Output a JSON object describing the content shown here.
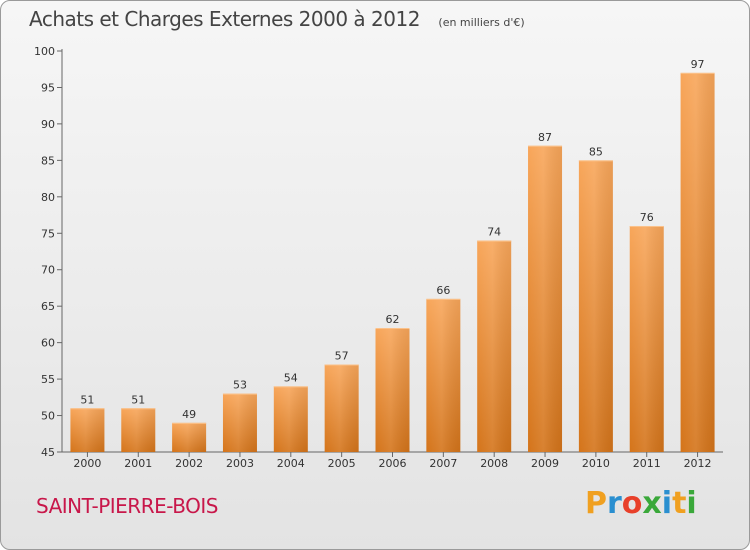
{
  "header": {
    "title": "Achats et Charges Externes 2000 à 2012",
    "unit": "(en milliers d'€)"
  },
  "footer": {
    "commune": "SAINT-PIERRE-BOIS",
    "logo": "Proxiti",
    "logo_colors": [
      "#f0a020",
      "#2a8fd0",
      "#e8402a",
      "#3aa83a",
      "#2a8fd0",
      "#f0a020",
      "#3aa83a"
    ]
  },
  "colors": {
    "bar_top": "#f8a65a",
    "bar_bottom": "#d4741a",
    "axis": "#666666",
    "grid": "#cccccc",
    "text": "#333333"
  },
  "chart_data": {
    "type": "bar",
    "title": "Achats et Charges Externes 2000 à 2012",
    "subtitle": "(en milliers d'€)",
    "xlabel": "",
    "ylabel": "",
    "categories": [
      "2000",
      "2001",
      "2002",
      "2003",
      "2004",
      "2005",
      "2006",
      "2007",
      "2008",
      "2009",
      "2010",
      "2011",
      "2012"
    ],
    "values": [
      51,
      51,
      49,
      53,
      54,
      57,
      62,
      66,
      74,
      87,
      85,
      76,
      97
    ],
    "ylim": [
      45,
      100
    ],
    "yticks": [
      45,
      50,
      55,
      60,
      65,
      70,
      75,
      80,
      85,
      90,
      95,
      100
    ],
    "grid": false,
    "legend": "none"
  }
}
